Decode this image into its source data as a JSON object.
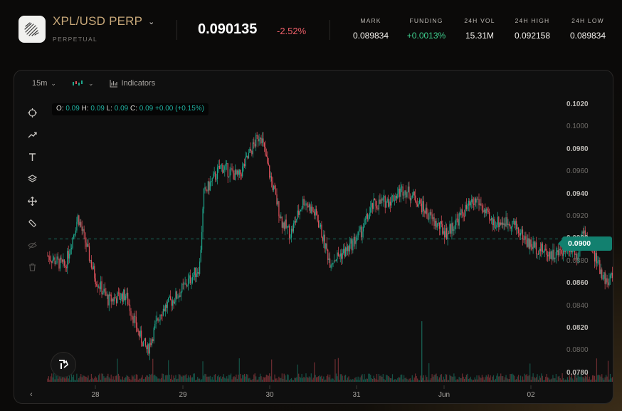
{
  "header": {
    "market": "XPL/USD PERP",
    "market_type": "PERPETUAL",
    "last_price": "0.090135",
    "change_pct": "-2.52%",
    "stats": [
      {
        "label": "MARK",
        "value": "0.089834",
        "tone": "neutral"
      },
      {
        "label": "FUNDING",
        "value": "+0.0013%",
        "tone": "positive"
      },
      {
        "label": "24H VOL",
        "value": "15.31M",
        "tone": "neutral"
      },
      {
        "label": "24H HIGH",
        "value": "0.092158",
        "tone": "neutral"
      },
      {
        "label": "24H LOW",
        "value": "0.089834",
        "tone": "neutral"
      }
    ]
  },
  "toolbar": {
    "interval": "15m",
    "chart_type_icon": "candles-icon",
    "indicators_label": "Indicators"
  },
  "ohlc": {
    "o_label": "O:",
    "o": "0.09",
    "h_label": "H:",
    "h": "0.09",
    "l_label": "L:",
    "l": "0.09",
    "c_label": "C:",
    "c": "0.09",
    "chg": "+0.00",
    "chg_pct": "(+0.15%)"
  },
  "side_tools": [
    "crosshair-icon",
    "trend-line-icon",
    "text-icon",
    "layers-icon",
    "move-icon",
    "measure-icon",
    "hide-icon",
    "trash-icon"
  ],
  "colors": {
    "up": "#1fa88e",
    "down": "#e0525c",
    "accent": "#c9a97a",
    "price_tag": "#12806f"
  },
  "chart_data": {
    "type": "candlestick",
    "interval": "15m",
    "y_ticks": [
      "0.1020",
      "0.1000",
      "0.0980",
      "0.0960",
      "0.0940",
      "0.0920",
      "0.0900",
      "0.0880",
      "0.0860",
      "0.0840",
      "0.0820",
      "0.0800",
      "0.0780"
    ],
    "ylim": [
      0.0775,
      0.1025
    ],
    "x_ticks": [
      "28",
      "29",
      "30",
      "31",
      "Jun",
      "02"
    ],
    "current_price_label": "0.0900",
    "close_path": [
      [
        0.0,
        0.0885
      ],
      [
        0.2,
        0.0875
      ],
      [
        0.35,
        0.092
      ],
      [
        0.55,
        0.0865
      ],
      [
        0.7,
        0.0845
      ],
      [
        0.9,
        0.085
      ],
      [
        1.05,
        0.0815
      ],
      [
        1.15,
        0.08
      ],
      [
        1.3,
        0.0835
      ],
      [
        1.5,
        0.085
      ],
      [
        1.65,
        0.0865
      ],
      [
        1.75,
        0.0875
      ],
      [
        1.8,
        0.094
      ],
      [
        2.0,
        0.0965
      ],
      [
        2.2,
        0.0955
      ],
      [
        2.35,
        0.098
      ],
      [
        2.45,
        0.0995
      ],
      [
        2.55,
        0.096
      ],
      [
        2.7,
        0.0915
      ],
      [
        2.8,
        0.0905
      ],
      [
        2.95,
        0.0935
      ],
      [
        3.1,
        0.092
      ],
      [
        3.25,
        0.088
      ],
      [
        3.35,
        0.0885
      ],
      [
        3.45,
        0.089
      ],
      [
        3.6,
        0.0905
      ],
      [
        3.75,
        0.093
      ],
      [
        3.95,
        0.0935
      ],
      [
        4.1,
        0.0945
      ],
      [
        4.25,
        0.0935
      ],
      [
        4.45,
        0.0915
      ],
      [
        4.6,
        0.0905
      ],
      [
        4.8,
        0.0925
      ],
      [
        4.95,
        0.0935
      ],
      [
        5.1,
        0.0915
      ],
      [
        5.35,
        0.0915
      ],
      [
        5.55,
        0.0895
      ],
      [
        5.7,
        0.089
      ],
      [
        5.85,
        0.0885
      ],
      [
        6.0,
        0.0895
      ],
      [
        6.1,
        0.0885
      ],
      [
        6.15,
        0.0905
      ],
      [
        6.25,
        0.0895
      ],
      [
        6.35,
        0.0875
      ],
      [
        6.45,
        0.086
      ],
      [
        6.55,
        0.0875
      ],
      [
        6.6,
        0.0895
      ],
      [
        6.62,
        0.0901
      ]
    ]
  },
  "brand_btn": "tradingview-logo-icon"
}
